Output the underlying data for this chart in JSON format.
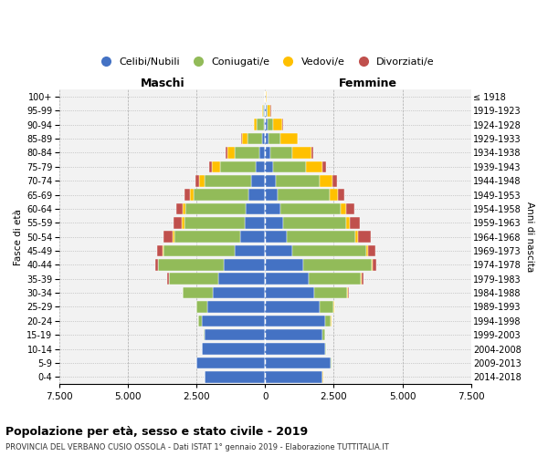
{
  "age_groups": [
    "0-4",
    "5-9",
    "10-14",
    "15-19",
    "20-24",
    "25-29",
    "30-34",
    "35-39",
    "40-44",
    "45-49",
    "50-54",
    "55-59",
    "60-64",
    "65-69",
    "70-74",
    "75-79",
    "80-84",
    "85-89",
    "90-94",
    "95-99",
    "100+"
  ],
  "birth_years": [
    "2014-2018",
    "2009-2013",
    "2004-2008",
    "1999-2003",
    "1994-1998",
    "1989-1993",
    "1984-1988",
    "1979-1983",
    "1974-1978",
    "1969-1973",
    "1964-1968",
    "1959-1963",
    "1954-1958",
    "1949-1953",
    "1944-1948",
    "1939-1943",
    "1934-1938",
    "1929-1933",
    "1924-1928",
    "1919-1923",
    "≤ 1918"
  ],
  "male": {
    "celibi": [
      2200,
      2500,
      2300,
      2200,
      2300,
      2100,
      1900,
      1700,
      1500,
      1100,
      900,
      750,
      700,
      600,
      500,
      350,
      200,
      100,
      50,
      30,
      10
    ],
    "coniugati": [
      2,
      5,
      10,
      50,
      150,
      400,
      1100,
      1800,
      2400,
      2600,
      2400,
      2200,
      2200,
      2000,
      1700,
      1300,
      900,
      550,
      250,
      60,
      10
    ],
    "vedovi": [
      1,
      1,
      1,
      2,
      5,
      5,
      5,
      10,
      20,
      40,
      60,
      80,
      100,
      150,
      200,
      280,
      280,
      200,
      100,
      30,
      5
    ],
    "divorziati": [
      1,
      1,
      1,
      2,
      5,
      10,
      20,
      50,
      100,
      200,
      350,
      300,
      250,
      200,
      150,
      100,
      50,
      20,
      10,
      5,
      2
    ]
  },
  "female": {
    "nubili": [
      2100,
      2400,
      2200,
      2100,
      2200,
      2000,
      1800,
      1600,
      1400,
      1000,
      800,
      650,
      550,
      450,
      400,
      300,
      200,
      120,
      80,
      40,
      15
    ],
    "coniugate": [
      2,
      5,
      15,
      70,
      200,
      500,
      1200,
      1900,
      2500,
      2700,
      2500,
      2300,
      2200,
      1900,
      1600,
      1200,
      800,
      450,
      200,
      60,
      10
    ],
    "vedove": [
      1,
      1,
      1,
      2,
      5,
      5,
      10,
      15,
      30,
      60,
      100,
      150,
      200,
      300,
      450,
      600,
      700,
      600,
      350,
      100,
      20
    ],
    "divorziate": [
      1,
      1,
      1,
      2,
      5,
      10,
      25,
      60,
      130,
      250,
      450,
      350,
      300,
      250,
      180,
      120,
      50,
      25,
      15,
      5,
      2
    ]
  },
  "colors": {
    "celibi": "#4472C4",
    "coniugati": "#92BB59",
    "vedovi": "#FFC000",
    "divorziati": "#C0504D"
  },
  "xlim": 7500,
  "xtick_labels": [
    "7.500",
    "5.000",
    "2.500",
    "0",
    "2.500",
    "5.000",
    "7.500"
  ],
  "title": "Popolazione per età, sesso e stato civile - 2019",
  "subtitle": "PROVINCIA DEL VERBANO CUSIO OSSOLA - Dati ISTAT 1° gennaio 2019 - Elaborazione TUTTITALIA.IT",
  "ylabel_left": "Fasce di età",
  "ylabel_right": "Anni di nascita",
  "label_maschi": "Maschi",
  "label_femmine": "Femmine",
  "legend_labels": [
    "Celibi/Nubili",
    "Coniugati/e",
    "Vedovi/e",
    "Divorziati/e"
  ],
  "background_color": "#FFFFFF",
  "grid_color": "#CCCCCC",
  "bar_facecolor": "#F2F2F2"
}
